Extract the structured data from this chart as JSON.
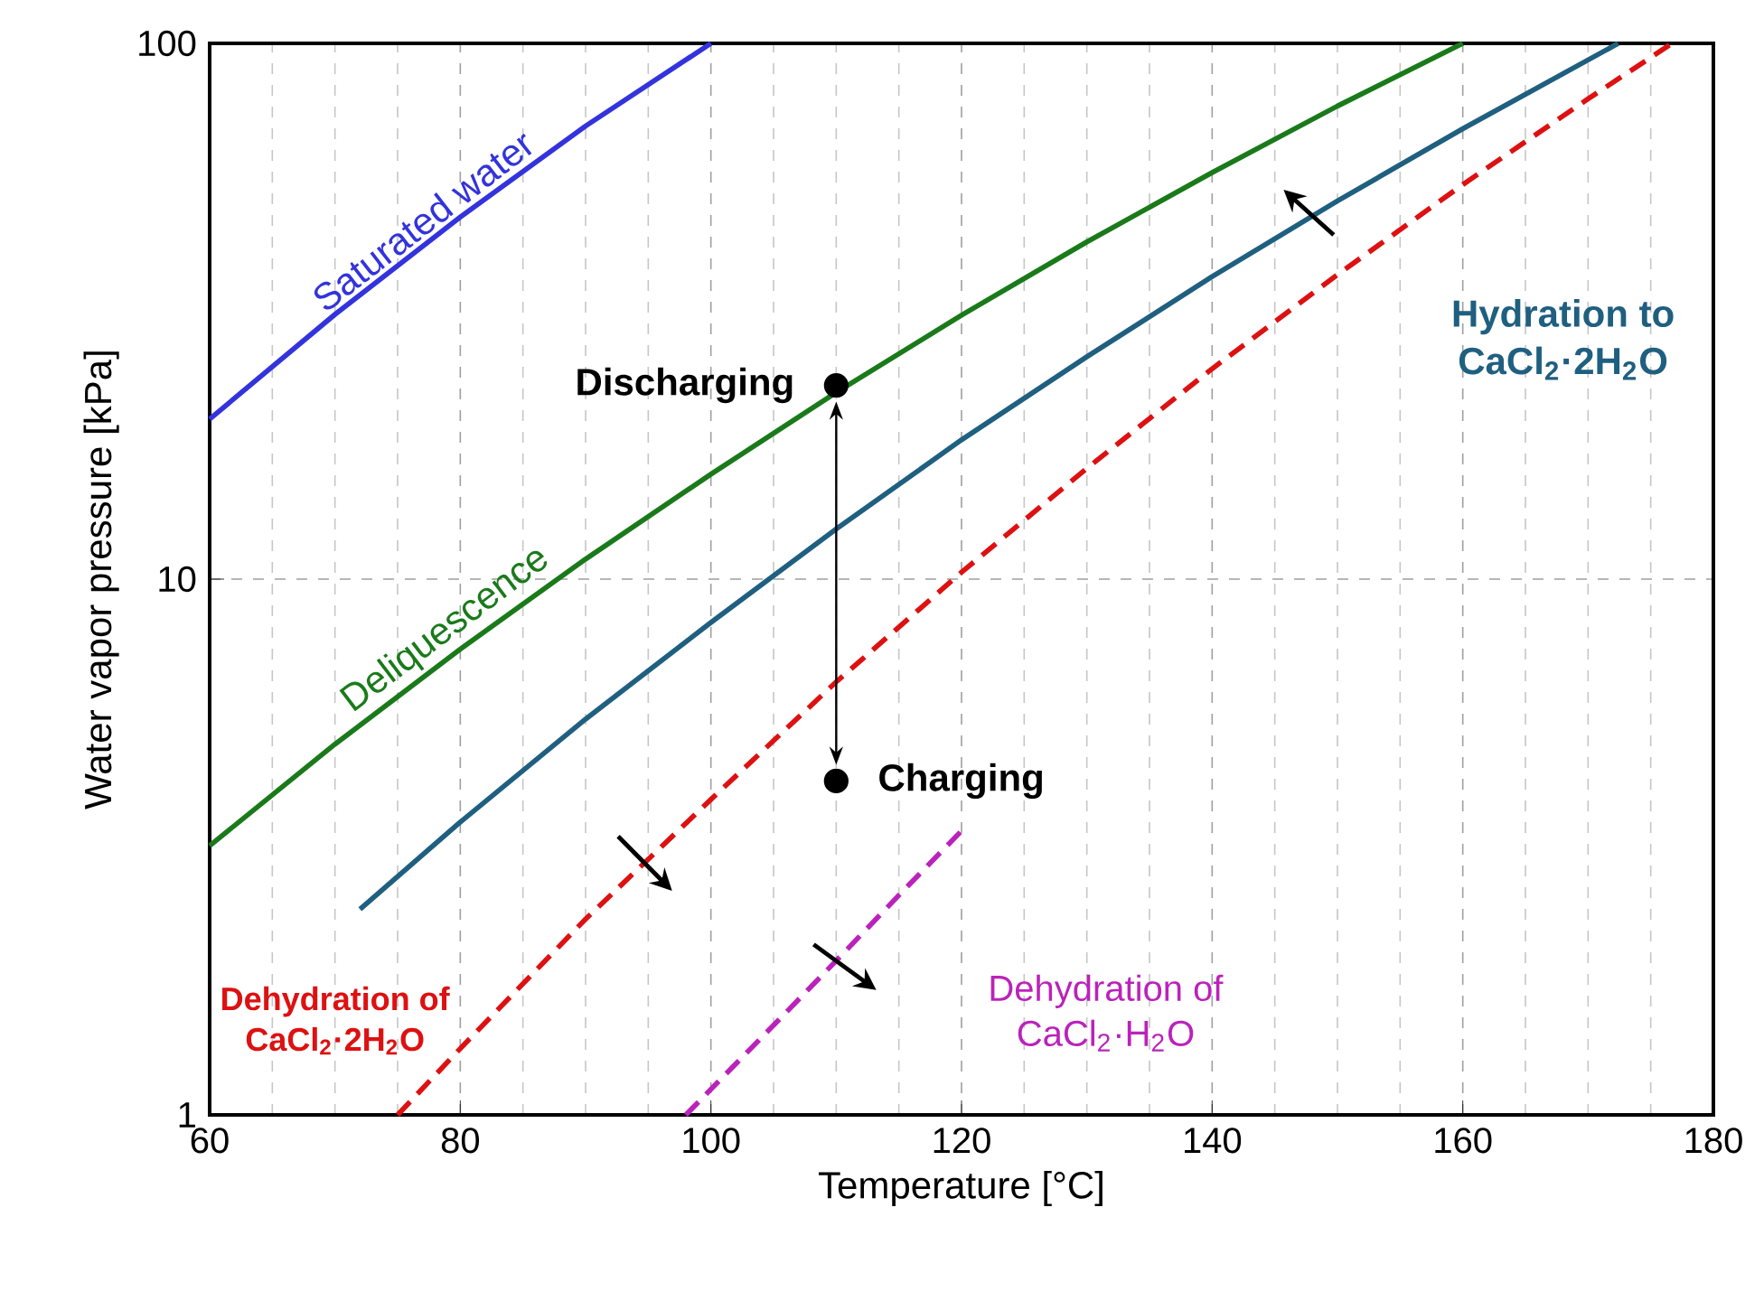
{
  "chart_data": {
    "type": "line",
    "xlabel": "Temperature [°C]",
    "ylabel": "Water vapor pressure [kPa]",
    "xlim": [
      60,
      180
    ],
    "ylim": [
      1,
      100
    ],
    "xticks": [
      60,
      80,
      100,
      120,
      140,
      160,
      180
    ],
    "yticks": [
      1,
      10,
      100
    ],
    "log": "y",
    "grid": true,
    "series": [
      {
        "name": "Saturated water",
        "color": "#3333dd",
        "x": [
          60,
          70,
          80,
          90,
          100
        ],
        "values": [
          19.9,
          31.2,
          47.4,
          70.1,
          100
        ]
      },
      {
        "name": "Deliquescence",
        "color": "#1a7a1a",
        "x": [
          60,
          70,
          80,
          90,
          100,
          110,
          120,
          130,
          140,
          150,
          160
        ],
        "values": [
          3.18,
          4.92,
          7.4,
          10.9,
          15.7,
          22.3,
          31.1,
          42.6,
          57.4,
          76.4,
          100
        ]
      },
      {
        "name": "Hydration to CaCl$_{2}$·2H$_{2}$O",
        "color": "#1f5f80",
        "x": [
          72,
          80,
          90,
          100,
          110,
          120,
          130,
          140,
          150,
          160,
          172.4
        ],
        "values": [
          2.42,
          3.52,
          5.48,
          8.3,
          12.4,
          18.2,
          26.0,
          36.7,
          50.8,
          69.3,
          100
        ]
      },
      {
        "name": "Dehydration of CaCl$_{2}$·2H$_{2}$O",
        "color": "#dd1111",
        "line_style": "dashed",
        "x": [
          75,
          80,
          90,
          100,
          110,
          120,
          130,
          140,
          150,
          160,
          170,
          176.7
        ],
        "values": [
          1.0,
          1.33,
          2.32,
          3.88,
          6.43,
          10.3,
          16.1,
          24.7,
          37.0,
          54.5,
          78.8,
          100
        ]
      },
      {
        "name": "Dehydration of CaCl$_{2}$·H$_{2}$O",
        "color": "#bb22bb",
        "line_style": "dashed",
        "x": [
          98,
          105,
          110,
          115,
          120
        ],
        "values": [
          1.0,
          1.47,
          1.94,
          2.57,
          3.39
        ]
      },
      {
        "type": "scatter",
        "color": "#000000",
        "marker": "circle",
        "x": [
          110,
          110
        ],
        "values": [
          23,
          4.2
        ]
      }
    ],
    "annotations": [
      {
        "text": "Discharging",
        "x": 110,
        "y": 23
      },
      {
        "text": "Charging",
        "x": 110,
        "y": 4.2
      }
    ]
  }
}
